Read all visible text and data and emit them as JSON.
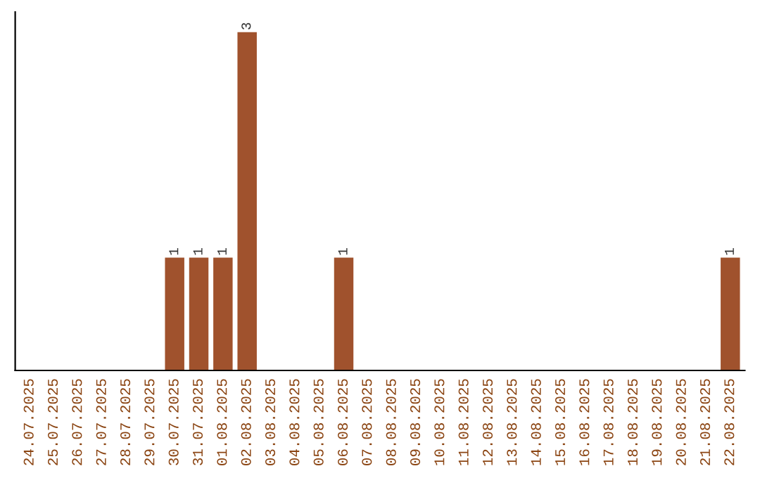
{
  "chart_data": {
    "type": "bar",
    "categories": [
      "24.07.2025",
      "25.07.2025",
      "26.07.2025",
      "27.07.2025",
      "28.07.2025",
      "29.07.2025",
      "30.07.2025",
      "31.07.2025",
      "01.08.2025",
      "02.08.2025",
      "03.08.2025",
      "04.08.2025",
      "05.08.2025",
      "06.08.2025",
      "07.08.2025",
      "08.08.2025",
      "09.08.2025",
      "10.08.2025",
      "11.08.2025",
      "12.08.2025",
      "13.08.2025",
      "14.08.2025",
      "15.08.2025",
      "16.08.2025",
      "17.08.2025",
      "18.08.2025",
      "19.08.2025",
      "20.08.2025",
      "21.08.2025",
      "22.08.2025"
    ],
    "values": [
      0,
      0,
      0,
      0,
      0,
      0,
      1,
      1,
      1,
      3,
      0,
      0,
      0,
      1,
      0,
      0,
      0,
      0,
      0,
      0,
      0,
      0,
      0,
      0,
      0,
      0,
      0,
      0,
      0,
      1
    ],
    "value_labels": [
      null,
      null,
      null,
      null,
      null,
      null,
      "1",
      "1",
      "1",
      "3",
      null,
      null,
      null,
      "1",
      null,
      null,
      null,
      null,
      null,
      null,
      null,
      null,
      null,
      null,
      null,
      null,
      null,
      null,
      null,
      "1"
    ],
    "color": "#a0522d",
    "tick_labels": "x",
    "grid": false,
    "legend": false
  }
}
